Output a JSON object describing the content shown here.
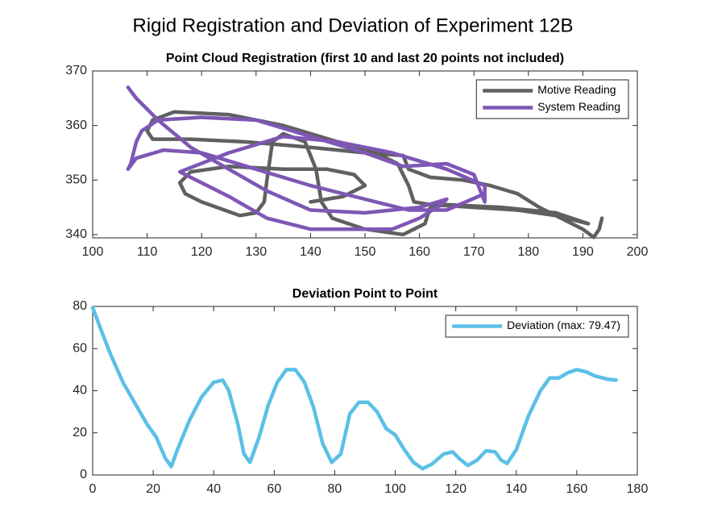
{
  "title": "Rigid Registration and Deviation of Experiment 12B",
  "chart_data": [
    {
      "type": "line",
      "title": "Point Cloud Registration (first 10 and last 20 points not included)",
      "xlim": [
        100,
        200
      ],
      "xticks": [
        100,
        110,
        120,
        130,
        140,
        150,
        160,
        170,
        180,
        190,
        200
      ],
      "ylim": [
        339.4,
        370
      ],
      "yticks": [
        340,
        350,
        360,
        370
      ],
      "legend": "northeast",
      "series": [
        {
          "name": "Motive Reading",
          "color": "#606060",
          "x": [
            193.5,
            193,
            192,
            190,
            186,
            182,
            178,
            173,
            168,
            162,
            158,
            157,
            150,
            140,
            128,
            118,
            111,
            110,
            111,
            115,
            125,
            135,
            145,
            152,
            156,
            158,
            159,
            162,
            170,
            178,
            185,
            191,
            185,
            175,
            165,
            162,
            161,
            157,
            150,
            144,
            142,
            141,
            139,
            135,
            133,
            132,
            131.5,
            130,
            127,
            120,
            117,
            116,
            118,
            125,
            135,
            143,
            148,
            150,
            146,
            140
          ],
          "values": [
            343,
            341,
            339.5,
            341,
            343,
            345,
            347.5,
            349,
            350,
            350.5,
            352,
            354.5,
            355,
            356,
            357,
            357.5,
            357.5,
            359,
            361,
            362.5,
            362,
            360,
            357,
            355,
            353,
            349,
            346,
            345.5,
            345,
            344.5,
            343.5,
            342,
            344,
            345,
            345.5,
            345,
            342,
            340,
            341,
            343,
            346,
            352,
            357,
            358.5,
            357,
            350,
            346,
            344,
            343.5,
            346,
            347.5,
            349.5,
            351.5,
            352.5,
            352,
            352,
            351,
            349,
            347,
            346
          ]
        },
        {
          "name": "System Reading",
          "color": "#7e57b5",
          "x": [
            106.5,
            108,
            112,
            118,
            125,
            132,
            140,
            150,
            160,
            165,
            164,
            160,
            155,
            150,
            140,
            132,
            125,
            116,
            125,
            135,
            145,
            155,
            165,
            172,
            172,
            170,
            165,
            157,
            150,
            140,
            130,
            120,
            112,
            109,
            108,
            107,
            106.5,
            108,
            113,
            120,
            130,
            140,
            150,
            158,
            165,
            172
          ],
          "values": [
            367,
            365,
            361,
            356,
            352,
            348,
            344.5,
            344,
            345,
            346.5,
            345.5,
            343,
            341,
            341,
            341,
            343,
            347,
            351.5,
            355,
            358,
            357,
            355,
            352,
            349,
            346,
            351,
            353,
            352.5,
            355,
            358,
            361,
            361.5,
            361,
            359,
            357,
            353,
            352,
            354,
            355.5,
            355,
            352,
            349,
            346.5,
            344.5,
            344.5,
            347.5
          ]
        }
      ]
    },
    {
      "type": "line",
      "title": "Deviation Point to Point",
      "xlim": [
        0,
        180
      ],
      "xticks": [
        0,
        20,
        40,
        60,
        80,
        100,
        120,
        140,
        160,
        180
      ],
      "ylim": [
        0,
        80
      ],
      "yticks": [
        0,
        20,
        40,
        60,
        80
      ],
      "legend": "northeast",
      "series": [
        {
          "name": "Deviation (max: 79.47)",
          "color": "#5bc0e6",
          "x": [
            0,
            3,
            6,
            10,
            14,
            18,
            21,
            24,
            26,
            28,
            32,
            36,
            40,
            43,
            45,
            48,
            50,
            52,
            55,
            58,
            61,
            64,
            67,
            70,
            73,
            76,
            79,
            82,
            85,
            88,
            91,
            94,
            97,
            100,
            103,
            106,
            109,
            112,
            116,
            119,
            121,
            124,
            127,
            130,
            133,
            135,
            137,
            140,
            144,
            148,
            151,
            154,
            157,
            160,
            163,
            166,
            170,
            173
          ],
          "values": [
            79.47,
            68,
            57,
            44,
            34,
            24,
            18,
            8,
            4,
            12,
            26,
            37,
            44,
            45,
            40,
            24,
            10,
            6,
            18,
            33,
            44,
            50,
            50,
            44,
            32,
            15,
            6,
            10,
            29,
            34.5,
            34.5,
            30,
            22,
            19,
            12,
            6,
            3,
            5,
            10,
            11,
            8,
            4.5,
            7,
            11.5,
            11,
            7,
            5.5,
            12,
            28,
            40,
            46,
            46,
            48.5,
            50,
            49,
            47,
            45.5,
            45
          ]
        }
      ]
    }
  ]
}
